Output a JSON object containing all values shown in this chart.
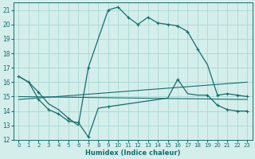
{
  "xlabel": "Humidex (Indice chaleur)",
  "xlim": [
    -0.5,
    23.5
  ],
  "ylim": [
    12,
    21.5
  ],
  "yticks": [
    12,
    13,
    14,
    15,
    16,
    17,
    18,
    19,
    20,
    21
  ],
  "xticks": [
    0,
    1,
    2,
    3,
    4,
    5,
    6,
    7,
    8,
    9,
    10,
    11,
    12,
    13,
    14,
    15,
    16,
    17,
    18,
    19,
    20,
    21,
    22,
    23
  ],
  "bg_color": "#d4eeec",
  "grid_color": "#a8d8d4",
  "line_color": "#1a6b6b",
  "line1_x": [
    0,
    1,
    2,
    3,
    4,
    5,
    6,
    7,
    8,
    9,
    10,
    11,
    12,
    13,
    14,
    15,
    16,
    17,
    18,
    19,
    20,
    21,
    22,
    23
  ],
  "line1_y": [
    16.4,
    16.0,
    15.3,
    14.5,
    14.1,
    13.5,
    13.0,
    17.0,
    19.0,
    21.0,
    21.2,
    20.5,
    20.0,
    20.5,
    20.1,
    20.0,
    19.9,
    19.5,
    18.3,
    17.2,
    15.1,
    15.2,
    15.1,
    15.0
  ],
  "line2_x": [
    0,
    1,
    2,
    3,
    4,
    5,
    6,
    7,
    8,
    9,
    10,
    11,
    12,
    13,
    14,
    15,
    16,
    17,
    18,
    19,
    20,
    21,
    22,
    23
  ],
  "line2_y": [
    16.4,
    16.0,
    14.8,
    14.1,
    13.8,
    13.3,
    13.2,
    12.2,
    14.2,
    14.3,
    14.4,
    14.5,
    14.6,
    14.7,
    14.8,
    14.9,
    16.2,
    15.2,
    15.1,
    15.1,
    14.4,
    14.1,
    14.0,
    14.0
  ],
  "line3_x": [
    0,
    23
  ],
  "line3_y": [
    14.8,
    16.0
  ],
  "line4_x": [
    0,
    23
  ],
  "line4_y": [
    15.0,
    14.8
  ],
  "marker_x": [
    0,
    1,
    2,
    5,
    7,
    9,
    10,
    11,
    12,
    13,
    14,
    15,
    16,
    17,
    18,
    20,
    21,
    22,
    23
  ],
  "marker_y": [
    16.4,
    16.0,
    15.3,
    13.5,
    17.0,
    21.0,
    21.2,
    20.5,
    20.0,
    20.5,
    20.1,
    20.0,
    19.9,
    19.5,
    18.3,
    15.1,
    15.2,
    15.1,
    15.0
  ],
  "marker2_x": [
    2,
    3,
    4,
    5,
    6,
    7,
    9,
    16,
    19,
    20,
    21,
    22,
    23
  ],
  "marker2_y": [
    14.8,
    14.1,
    13.8,
    13.3,
    13.2,
    12.2,
    14.3,
    16.2,
    15.1,
    14.4,
    14.1,
    14.0,
    14.0
  ]
}
